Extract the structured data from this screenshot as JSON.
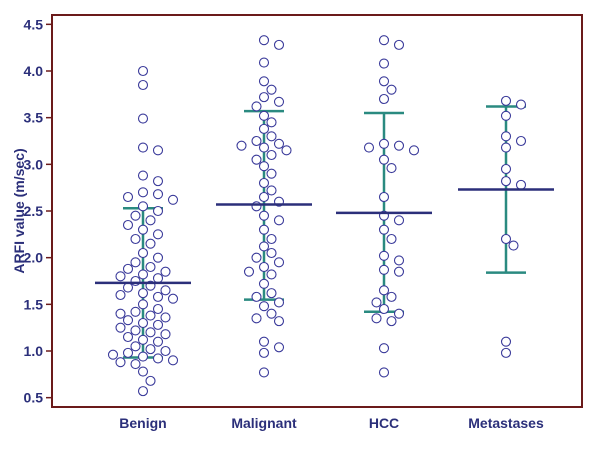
{
  "chart_data": {
    "type": "scatter",
    "subtype": "dot-plot with mean and standard deviation bars",
    "ylabel": "ARFI value (m/sec)",
    "xlabel": "",
    "ylim": [
      0.4,
      4.6
    ],
    "yticks": [
      0.5,
      1.0,
      1.5,
      2.0,
      2.5,
      3.0,
      3.5,
      4.0,
      4.5
    ],
    "ytick_labels": [
      "0.5",
      "1.0",
      "1.5",
      "2.0",
      "2.5",
      "3.0",
      "3.5",
      "4.0",
      "4.5"
    ],
    "grid": false,
    "legend": "none",
    "categories": [
      "Benign",
      "Malignant",
      "HCC",
      "Metastases"
    ],
    "colors": {
      "frame": "#6b1a1a",
      "axis_text": "#2b2f7a",
      "mean_line": "#2b2f7a",
      "sd_bar": "#2a8a80",
      "point_stroke": "#3a3a9a",
      "point_fill": "#ffffff"
    },
    "groups": [
      {
        "name": "Benign",
        "mean": 1.73,
        "sd_low": 0.93,
        "sd_high": 2.53,
        "values": [
          4.0,
          3.85,
          3.49,
          3.18,
          3.15,
          2.88,
          2.82,
          2.7,
          2.68,
          2.65,
          2.62,
          2.55,
          2.5,
          2.45,
          2.4,
          2.35,
          2.3,
          2.25,
          2.2,
          2.15,
          2.05,
          2.0,
          1.95,
          1.9,
          1.88,
          1.85,
          1.82,
          1.8,
          1.78,
          1.75,
          1.7,
          1.68,
          1.65,
          1.62,
          1.6,
          1.58,
          1.56,
          1.5,
          1.45,
          1.42,
          1.4,
          1.38,
          1.36,
          1.33,
          1.3,
          1.28,
          1.25,
          1.22,
          1.2,
          1.18,
          1.15,
          1.12,
          1.1,
          1.05,
          1.02,
          1.0,
          0.98,
          0.96,
          0.94,
          0.92,
          0.9,
          0.88,
          0.86,
          0.78,
          0.68,
          0.57
        ]
      },
      {
        "name": "Malignant",
        "mean": 2.57,
        "sd_low": 1.55,
        "sd_high": 3.57,
        "values": [
          4.33,
          4.28,
          4.09,
          3.89,
          3.8,
          3.72,
          3.67,
          3.62,
          3.52,
          3.45,
          3.38,
          3.3,
          3.25,
          3.22,
          3.2,
          3.18,
          3.15,
          3.1,
          3.05,
          2.98,
          2.9,
          2.8,
          2.72,
          2.65,
          2.6,
          2.55,
          2.45,
          2.4,
          2.3,
          2.2,
          2.12,
          2.05,
          2.0,
          1.95,
          1.9,
          1.85,
          1.82,
          1.72,
          1.62,
          1.58,
          1.52,
          1.48,
          1.4,
          1.35,
          1.32,
          1.1,
          1.04,
          0.98,
          0.77
        ]
      },
      {
        "name": "HCC",
        "mean": 2.48,
        "sd_low": 1.42,
        "sd_high": 3.55,
        "values": [
          4.33,
          4.28,
          4.08,
          3.89,
          3.8,
          3.7,
          3.22,
          3.2,
          3.18,
          3.15,
          3.05,
          2.96,
          2.65,
          2.45,
          2.4,
          2.3,
          2.2,
          2.02,
          1.97,
          1.87,
          1.85,
          1.65,
          1.58,
          1.52,
          1.45,
          1.4,
          1.35,
          1.32,
          1.03,
          0.77
        ]
      },
      {
        "name": "Metastases",
        "mean": 2.73,
        "sd_low": 1.84,
        "sd_high": 3.62,
        "values": [
          3.68,
          3.64,
          3.52,
          3.3,
          3.25,
          3.18,
          2.95,
          2.82,
          2.78,
          2.2,
          2.13,
          1.1,
          0.98
        ]
      }
    ]
  }
}
